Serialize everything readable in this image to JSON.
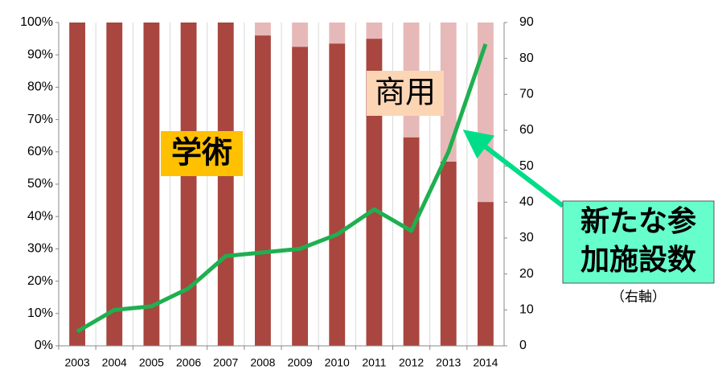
{
  "chart_data": {
    "type": "bar",
    "categories": [
      "2003",
      "2004",
      "2005",
      "2006",
      "2007",
      "2008",
      "2009",
      "2010",
      "2011",
      "2012",
      "2013",
      "2014"
    ],
    "series": [
      {
        "color": "#a8463f",
        "values": [
          100,
          100,
          100,
          100,
          100,
          96,
          92.5,
          93.5,
          95,
          64.5,
          57,
          44.5
        ]
      },
      {
        "color": "#e6b9b8",
        "values": [
          0,
          0,
          0,
          0,
          0,
          4,
          7.5,
          6.5,
          5,
          35.5,
          43,
          55.5
        ]
      },
      {
        "type": "line",
        "axis": "y2",
        "color": "#1faf50",
        "values": [
          4,
          10,
          11,
          16,
          25,
          26,
          27,
          31,
          38,
          32,
          54,
          84
        ]
      }
    ],
    "ylim": [
      0,
      100
    ],
    "yticks": [
      {
        "value": 0,
        "label": "0%"
      },
      {
        "value": 10,
        "label": "10%"
      },
      {
        "value": 20,
        "label": "20%"
      },
      {
        "value": 30,
        "label": "30%"
      },
      {
        "value": 40,
        "label": "40%"
      },
      {
        "value": 50,
        "label": "50%"
      },
      {
        "value": 60,
        "label": "60%"
      },
      {
        "value": 70,
        "label": "70%"
      },
      {
        "value": 80,
        "label": "80%"
      },
      {
        "value": 90,
        "label": "90%"
      },
      {
        "value": 100,
        "label": "100%"
      }
    ],
    "y2lim": [
      0,
      90
    ],
    "y2ticks": [
      0,
      10,
      20,
      30,
      40,
      50,
      60,
      70,
      80,
      90
    ],
    "grid": true,
    "annotations": [
      {
        "text": "学術",
        "color": "#ffc000"
      },
      {
        "text": "商用",
        "color": "#fcd5b5"
      },
      {
        "lines": [
          "新たな参",
          "加施設数"
        ],
        "color": "#66ffcc",
        "arrow_color": "#00dd88"
      },
      {
        "text": "（右軸）"
      }
    ]
  }
}
